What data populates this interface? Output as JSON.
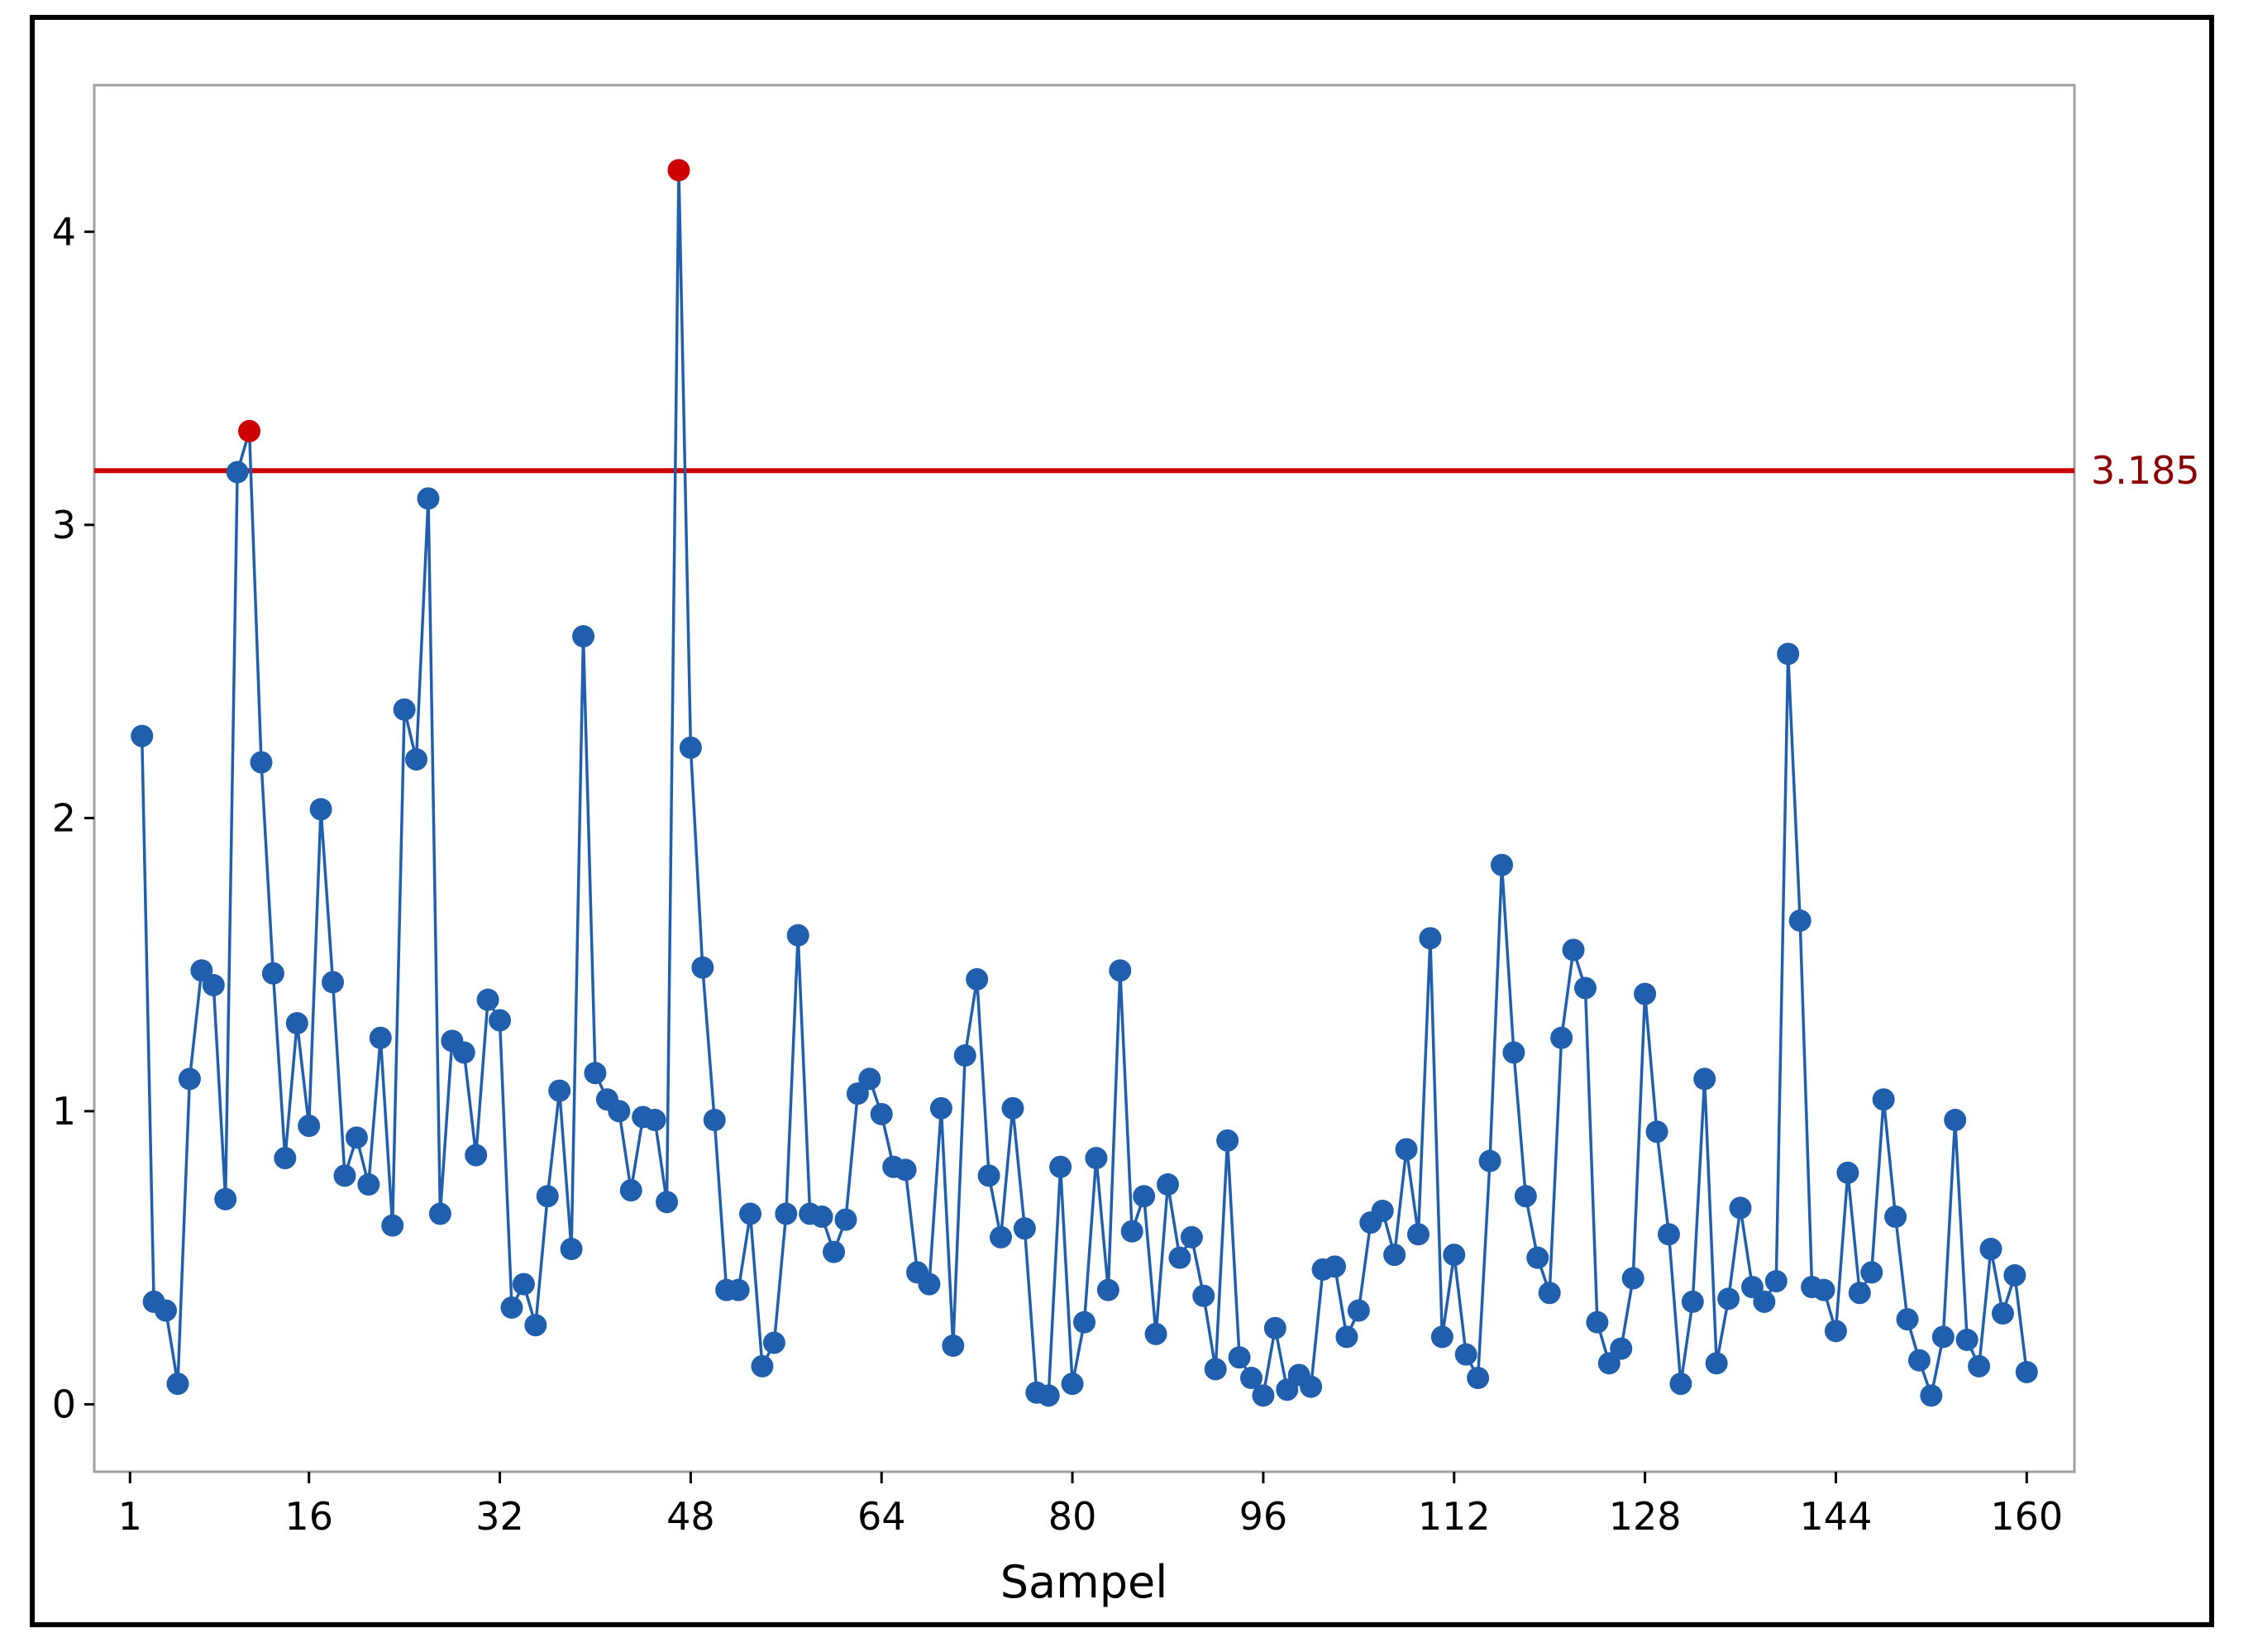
{
  "chart_data": {
    "type": "line",
    "xlabel": "Sampel",
    "ylabel": "",
    "title": "",
    "xlim": [
      -2,
      164
    ],
    "ylim": [
      -0.23,
      4.5
    ],
    "x_ticks": [
      1,
      16,
      32,
      48,
      64,
      80,
      96,
      112,
      128,
      144,
      160
    ],
    "y_ticks": [
      0,
      1,
      2,
      3,
      4
    ],
    "grid": false,
    "reference_line": {
      "value": 3.185,
      "label": "3.185",
      "color": "#cc0000"
    },
    "series": [
      {
        "color": "#1f5fad",
        "outlier_color": "#cc0000",
        "x_start": 2,
        "values": [
          2.28,
          0.35,
          0.32,
          0.07,
          1.11,
          1.48,
          1.43,
          0.7,
          3.18,
          3.32,
          2.19,
          1.47,
          0.84,
          1.3,
          0.95,
          2.03,
          1.44,
          0.78,
          0.91,
          0.75,
          1.25,
          0.61,
          2.37,
          2.2,
          3.09,
          0.65,
          1.24,
          1.2,
          0.85,
          1.38,
          1.31,
          0.33,
          0.41,
          0.27,
          0.71,
          1.07,
          0.53,
          2.62,
          1.13,
          1.04,
          1.0,
          0.73,
          0.98,
          0.97,
          0.69,
          4.21,
          2.24,
          1.49,
          0.97,
          0.39,
          0.39,
          0.65,
          0.13,
          0.21,
          0.65,
          1.6,
          0.65,
          0.64,
          0.52,
          0.63,
          1.06,
          1.11,
          0.99,
          0.81,
          0.8,
          0.45,
          0.41,
          1.01,
          0.2,
          1.19,
          1.45,
          0.78,
          0.57,
          1.01,
          0.6,
          0.04,
          0.03,
          0.81,
          0.07,
          0.28,
          0.84,
          0.39,
          1.48,
          0.59,
          0.71,
          0.24,
          0.75,
          0.5,
          0.57,
          0.37,
          0.12,
          0.9,
          0.16,
          0.09,
          0.03,
          0.26,
          0.05,
          0.1,
          0.06,
          0.46,
          0.47,
          0.23,
          0.32,
          0.62,
          0.66,
          0.51,
          0.87,
          0.58,
          1.59,
          0.23,
          0.51,
          0.17,
          0.09,
          0.83,
          1.84,
          1.2,
          0.71,
          0.5,
          0.38,
          1.25,
          1.55,
          1.42,
          0.28,
          0.14,
          0.19,
          0.43,
          1.4,
          0.93,
          0.58,
          0.07,
          0.35,
          1.11,
          0.14,
          0.36,
          0.67,
          0.4,
          0.35,
          0.42,
          2.56,
          1.65,
          0.4,
          0.39,
          0.25,
          0.79,
          0.38,
          0.45,
          1.04,
          0.64,
          0.29,
          0.15,
          0.03,
          0.23,
          0.97,
          0.22,
          0.13,
          0.53,
          0.31,
          0.44,
          0.11
        ],
        "highlight_x": [
          11,
          47
        ]
      }
    ]
  }
}
